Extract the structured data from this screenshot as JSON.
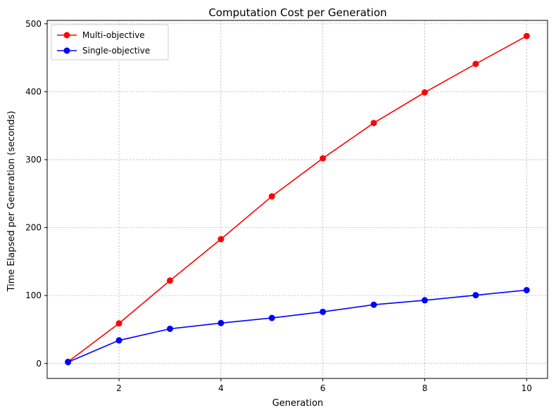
{
  "chart_data": {
    "type": "line",
    "title": "Computation Cost per Generation",
    "xlabel": "Generation",
    "ylabel": "Time Elapsed per Generation (seconds)",
    "x": [
      1,
      2,
      3,
      4,
      5,
      6,
      7,
      8,
      9,
      10
    ],
    "xlim": [
      0.59,
      10.41
    ],
    "ylim": [
      -22,
      505
    ],
    "xticks": [
      2,
      4,
      6,
      8,
      10
    ],
    "yticks": [
      0,
      100,
      200,
      300,
      400,
      500
    ],
    "grid": true,
    "legend_position": "top-left",
    "series": [
      {
        "name": "Multi-objective",
        "color": "#ff0000",
        "values": [
          2.5,
          59,
          122,
          183,
          246,
          302,
          354,
          399,
          441,
          482
        ]
      },
      {
        "name": "Single-objective",
        "color": "#0000ff",
        "values": [
          2,
          34,
          51,
          59.5,
          67,
          76,
          86.5,
          93,
          100.5,
          108
        ]
      }
    ]
  }
}
